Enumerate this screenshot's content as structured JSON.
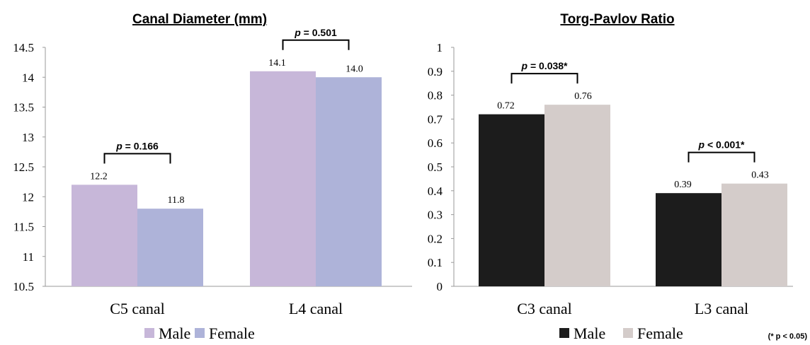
{
  "chart_data": [
    {
      "type": "bar",
      "title": "Canal Diameter (mm)",
      "categories": [
        "C5 canal",
        "L4 canal"
      ],
      "series": [
        {
          "name": "Male",
          "values": [
            12.2,
            14.1
          ],
          "labels": [
            "12.2",
            "14.1"
          ],
          "color": "#c7b7d9"
        },
        {
          "name": "Female",
          "values": [
            11.8,
            14.0
          ],
          "labels": [
            "11.8",
            "14.0"
          ],
          "color": "#aeb3d9"
        }
      ],
      "ylim": [
        10.5,
        14.5
      ],
      "yticks": [
        "10.5",
        "11",
        "11.5",
        "12",
        "12.5",
        "13",
        "13.5",
        "14",
        "14.5"
      ],
      "grid": false,
      "legend": "bottom",
      "annotations": [
        {
          "p": "p",
          "rest": " = 0.166"
        },
        {
          "p": "p",
          "rest": " = 0.501"
        }
      ]
    },
    {
      "type": "bar",
      "title": "Torg-Pavlov Ratio",
      "categories": [
        "C3 canal",
        "L3 canal"
      ],
      "series": [
        {
          "name": "Male",
          "values": [
            0.72,
            0.39
          ],
          "labels": [
            "0.72",
            "0.39"
          ],
          "color": "#1c1c1c"
        },
        {
          "name": "Female",
          "values": [
            0.76,
            0.43
          ],
          "labels": [
            "0.76",
            "0.43"
          ],
          "color": "#d4ccca"
        }
      ],
      "ylim": [
        0,
        1
      ],
      "yticks": [
        "0",
        "0.1",
        "0.2",
        "0.3",
        "0.4",
        "0.5",
        "0.6",
        "0.7",
        "0.8",
        "0.9",
        "1"
      ],
      "grid": false,
      "legend": "bottom",
      "annotations": [
        {
          "p": "p",
          "rest": " = 0.038*"
        },
        {
          "p": "p",
          "rest": " < 0.001*"
        }
      ],
      "footnote": "(* p < 0.05)"
    }
  ]
}
